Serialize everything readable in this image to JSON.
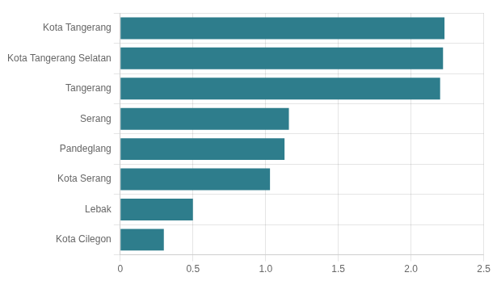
{
  "chart_data": {
    "type": "bar",
    "orientation": "horizontal",
    "categories": [
      "Kota Cilegon",
      "Lebak",
      "Kota Serang",
      "Pandeglang",
      "Serang",
      "Tangerang",
      "Kota Tangerang Selatan",
      "Kota Tangerang"
    ],
    "values": [
      0.3,
      0.5,
      1.03,
      1.13,
      1.16,
      2.2,
      2.22,
      2.23
    ],
    "color": "#2e7d8c",
    "xlim": [
      0,
      2.5
    ],
    "xticks": [
      0,
      0.5,
      {
        "value": 1.0,
        "label": "1.0"
      },
      1.5,
      {
        "value": 2.0,
        "label": "2.0"
      },
      2.5
    ],
    "grid": true
  }
}
